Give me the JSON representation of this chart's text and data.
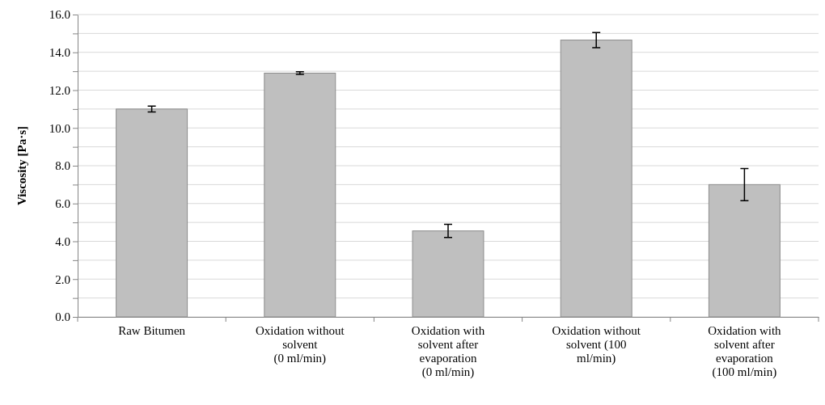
{
  "chart_data": {
    "type": "bar",
    "ylabel": "Viscosity [Pa·s]",
    "categories": [
      "Raw Bitumen",
      "Oxidation without\nsolvent\n(0 ml/min)",
      "Oxidation with\nsolvent after\nevaporation\n(0 ml/min)",
      "Oxidation without\nsolvent (100\nml/min)",
      "Oxidation with\nsolvent after\nevaporation\n(100 ml/min)"
    ],
    "values": [
      11.0,
      12.9,
      4.55,
      14.65,
      7.0
    ],
    "errors": [
      0.15,
      0.07,
      0.35,
      0.4,
      0.85
    ],
    "color": "#bfbfbf",
    "ylim": [
      0,
      16
    ],
    "yticks": [
      {
        "value": 0,
        "label": "0.0"
      },
      {
        "value": 1,
        "label": null
      },
      {
        "value": 2,
        "label": "2.0"
      },
      {
        "value": 3,
        "label": null
      },
      {
        "value": 4,
        "label": "4.0"
      },
      {
        "value": 5,
        "label": null
      },
      {
        "value": 6,
        "label": "6.0"
      },
      {
        "value": 7,
        "label": null
      },
      {
        "value": 8,
        "label": "8.0"
      },
      {
        "value": 9,
        "label": null
      },
      {
        "value": 10,
        "label": "10.0"
      },
      {
        "value": 11,
        "label": null
      },
      {
        "value": 12,
        "label": "12.0"
      },
      {
        "value": 13,
        "label": null
      },
      {
        "value": 14,
        "label": "14.0"
      },
      {
        "value": 15,
        "label": null
      },
      {
        "value": 16,
        "label": "16.0"
      }
    ],
    "grid": "y"
  }
}
